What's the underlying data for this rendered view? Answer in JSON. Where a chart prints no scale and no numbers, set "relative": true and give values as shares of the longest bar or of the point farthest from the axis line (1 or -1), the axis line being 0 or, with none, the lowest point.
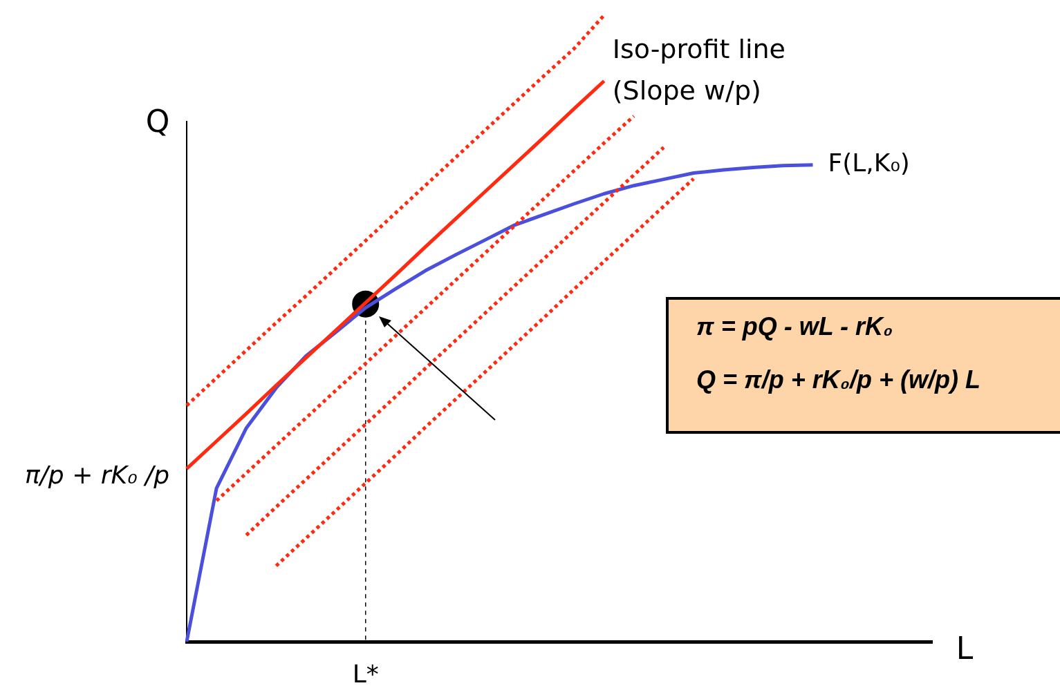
{
  "chart_data": {
    "type": "line",
    "relative": true,
    "xlabel": "L",
    "ylabel": "Q",
    "categories": [
      null,
      null,
      null,
      null,
      null,
      null,
      null,
      null,
      null,
      null,
      null,
      null,
      null,
      null,
      null,
      null,
      null,
      null,
      null,
      null,
      null,
      null,
      null,
      null,
      null,
      null
    ],
    "series": [
      {
        "color": "#ff2a10",
        "line_style": "dotted",
        "values": [
          0.377,
          0.421,
          0.465,
          0.509,
          0.552,
          0.596,
          0.64,
          0.684,
          0.728,
          0.772,
          0.816,
          0.86,
          0.904,
          0.947,
          1,
          null,
          null,
          null,
          null,
          null,
          null,
          null,
          null,
          null,
          null,
          null
        ]
      },
      {
        "color": "#ff2a10",
        "line_style": "solid",
        "values": [
          0.276,
          0.32,
          0.364,
          0.409,
          0.453,
          0.497,
          0.541,
          0.585,
          0.63,
          0.674,
          0.718,
          0.762,
          0.806,
          0.851,
          0.895,
          null,
          null,
          null,
          null,
          null,
          null,
          null,
          null,
          null,
          null,
          null
        ]
      },
      {
        "color": "#ff2a10",
        "line_style": "dotted",
        "values": [
          null,
          0.225,
          0.269,
          0.313,
          0.357,
          0.401,
          0.444,
          0.488,
          0.532,
          0.576,
          0.62,
          0.664,
          0.708,
          0.752,
          0.796,
          0.839,
          null,
          null,
          null,
          null,
          null,
          null,
          null,
          null,
          null,
          null
        ]
      },
      {
        "color": "#ff2a10",
        "line_style": "dotted",
        "values": [
          null,
          null,
          0.17,
          0.215,
          0.259,
          0.303,
          0.347,
          0.391,
          0.436,
          0.48,
          0.524,
          0.568,
          0.612,
          0.657,
          0.701,
          0.745,
          0.789,
          null,
          null,
          null,
          null,
          null,
          null,
          null,
          null,
          null
        ]
      },
      {
        "color": "#ff2a10",
        "line_style": "dotted",
        "values": [
          null,
          null,
          null,
          0.121,
          0.165,
          0.209,
          0.253,
          0.297,
          0.342,
          0.386,
          0.43,
          0.474,
          0.518,
          0.563,
          0.607,
          0.651,
          0.695,
          0.739,
          null,
          null,
          null,
          null,
          null,
          null,
          null,
          null
        ]
      },
      {
        "color": "#4a4fdc",
        "line_style": "solid",
        "values": [
          0,
          0.245,
          0.341,
          0.405,
          0.456,
          0.494,
          0.533,
          0.563,
          0.592,
          0.617,
          0.641,
          0.665,
          0.682,
          0.699,
          0.715,
          0.728,
          0.738,
          0.748,
          0.753,
          0.757,
          0.76,
          0.761,
          null,
          null,
          null,
          null
        ]
      },
      {
        "color": "#000000",
        "marker": "circle",
        "line_style": "dashed",
        "values": [
          null,
          null,
          null,
          null,
          null,
          null,
          0.539,
          null,
          null,
          null,
          null,
          null,
          null,
          null,
          null,
          null,
          null,
          null,
          null,
          null,
          null,
          null,
          null,
          null,
          null,
          null
        ]
      }
    ],
    "annotations": [
      "Iso-profit line\n(Slope w/p)",
      "F(L,K₀)",
      "π/p + rK₀ /p",
      "L*",
      "π = pQ - wL - rK₀",
      "Q = π/p + rK₀/p + (w/p) L"
    ]
  }
}
